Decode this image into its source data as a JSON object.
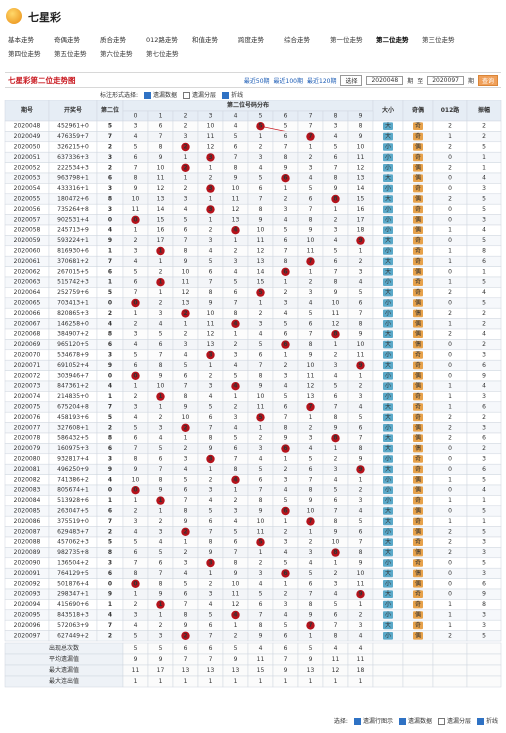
{
  "header": {
    "title": "七星彩"
  },
  "nav": {
    "items": [
      "基本走势",
      "奇偶走势",
      "质合走势",
      "012路走势",
      "和值走势",
      "跨度走势",
      "综合走势",
      "第一位走势",
      "第二位走势",
      "第三位走势",
      "第四位走势",
      "第五位走势",
      "第六位走势",
      "第七位走势"
    ],
    "active": 8
  },
  "bar": {
    "title": "七星彩第二位走势图",
    "periods": [
      "最近50期",
      "最近100期",
      "最近120期"
    ],
    "select": "选择",
    "from": "2020048",
    "to_label": "至",
    "to": "2020097",
    "unit": "期",
    "query": "查询"
  },
  "options": {
    "label": "标注形式选择:",
    "items": [
      {
        "label": "遗漏数据",
        "checked": true
      },
      {
        "label": "遗漏分层",
        "checked": false
      },
      {
        "label": "折线",
        "checked": true
      }
    ]
  },
  "legend": {
    "label": "选择:",
    "items": [
      {
        "label": "遗漏行图示",
        "checked": true
      },
      {
        "label": "遗漏数据",
        "checked": true
      },
      {
        "label": "遗漏分层",
        "checked": false
      },
      {
        "label": "折线",
        "checked": true
      }
    ]
  },
  "table": {
    "headers": [
      "期号",
      "开奖号",
      "第二位",
      "第二位号码分布",
      "大小",
      "奇偶",
      "012路",
      "振幅"
    ],
    "digit_headers": [
      "0",
      "1",
      "2",
      "3",
      "4",
      "5",
      "6",
      "7",
      "8",
      "9"
    ],
    "rows": [
      {
        "issue": "2020048",
        "number": "452961+0",
        "digit": 5,
        "miss": [
          3,
          6,
          2,
          10,
          4,
          5,
          5,
          7,
          3,
          8
        ],
        "size": "大",
        "parity": "奇",
        "route": 2,
        "amp": 2
      },
      {
        "issue": "2020049",
        "number": "476359+7",
        "digit": 7,
        "miss": [
          4,
          7,
          3,
          11,
          5,
          1,
          6,
          7,
          4,
          9
        ],
        "size": "大",
        "parity": "奇",
        "route": 1,
        "amp": 2
      },
      {
        "issue": "2020050",
        "number": "326215+0",
        "digit": 2,
        "miss": [
          5,
          8,
          2,
          12,
          6,
          2,
          7,
          1,
          5,
          10
        ],
        "size": "小",
        "parity": "偶",
        "route": 2,
        "amp": 5
      },
      {
        "issue": "2020051",
        "number": "637336+3",
        "digit": 3,
        "miss": [
          6,
          9,
          1,
          3,
          7,
          3,
          8,
          2,
          6,
          11
        ],
        "size": "小",
        "parity": "奇",
        "route": 0,
        "amp": 1
      },
      {
        "issue": "2020052",
        "number": "222534+3",
        "digit": 2,
        "miss": [
          7,
          10,
          2,
          1,
          8,
          4,
          9,
          3,
          7,
          12
        ],
        "size": "小",
        "parity": "偶",
        "route": 2,
        "amp": 1
      },
      {
        "issue": "2020053",
        "number": "963798+1",
        "digit": 6,
        "miss": [
          8,
          11,
          1,
          2,
          9,
          5,
          6,
          4,
          8,
          13
        ],
        "size": "大",
        "parity": "偶",
        "route": 0,
        "amp": 4
      },
      {
        "issue": "2020054",
        "number": "433316+1",
        "digit": 3,
        "miss": [
          9,
          12,
          2,
          3,
          10,
          6,
          1,
          5,
          9,
          14
        ],
        "size": "小",
        "parity": "奇",
        "route": 0,
        "amp": 3
      },
      {
        "issue": "2020055",
        "number": "180472+6",
        "digit": 8,
        "miss": [
          10,
          13,
          3,
          1,
          11,
          7,
          2,
          6,
          8,
          15
        ],
        "size": "大",
        "parity": "偶",
        "route": 2,
        "amp": 5
      },
      {
        "issue": "2020056",
        "number": "735264+8",
        "digit": 3,
        "miss": [
          11,
          14,
          4,
          3,
          12,
          8,
          3,
          7,
          1,
          16
        ],
        "size": "小",
        "parity": "奇",
        "route": 0,
        "amp": 5
      },
      {
        "issue": "2020057",
        "number": "902531+4",
        "digit": 0,
        "miss": [
          0,
          15,
          5,
          1,
          13,
          9,
          4,
          8,
          2,
          17
        ],
        "size": "小",
        "parity": "偶",
        "route": 0,
        "amp": 3
      },
      {
        "issue": "2020058",
        "number": "245713+9",
        "digit": 4,
        "miss": [
          1,
          16,
          6,
          2,
          4,
          10,
          5,
          9,
          3,
          18
        ],
        "size": "小",
        "parity": "偶",
        "route": 1,
        "amp": 4
      },
      {
        "issue": "2020059",
        "number": "593224+1",
        "digit": 9,
        "miss": [
          2,
          17,
          7,
          3,
          1,
          11,
          6,
          10,
          4,
          9
        ],
        "size": "大",
        "parity": "奇",
        "route": 0,
        "amp": 5
      },
      {
        "issue": "2020060",
        "number": "816930+6",
        "digit": 1,
        "miss": [
          3,
          1,
          8,
          4,
          2,
          12,
          7,
          11,
          5,
          1
        ],
        "size": "小",
        "parity": "奇",
        "route": 1,
        "amp": 8
      },
      {
        "issue": "2020061",
        "number": "370681+2",
        "digit": 7,
        "miss": [
          4,
          1,
          9,
          5,
          3,
          13,
          8,
          7,
          6,
          2
        ],
        "size": "大",
        "parity": "奇",
        "route": 1,
        "amp": 6
      },
      {
        "issue": "2020062",
        "number": "267015+5",
        "digit": 6,
        "miss": [
          5,
          2,
          10,
          6,
          4,
          14,
          6,
          1,
          7,
          3
        ],
        "size": "大",
        "parity": "偶",
        "route": 0,
        "amp": 1
      },
      {
        "issue": "2020063",
        "number": "515742+3",
        "digit": 1,
        "miss": [
          6,
          1,
          11,
          7,
          5,
          15,
          1,
          2,
          8,
          4
        ],
        "size": "小",
        "parity": "奇",
        "route": 1,
        "amp": 5
      },
      {
        "issue": "2020064",
        "number": "252759+6",
        "digit": 5,
        "miss": [
          7,
          1,
          12,
          8,
          6,
          5,
          2,
          3,
          9,
          5
        ],
        "size": "大",
        "parity": "奇",
        "route": 2,
        "amp": 4
      },
      {
        "issue": "2020065",
        "number": "703413+1",
        "digit": 0,
        "miss": [
          0,
          2,
          13,
          9,
          7,
          1,
          3,
          4,
          10,
          6
        ],
        "size": "小",
        "parity": "偶",
        "route": 0,
        "amp": 5
      },
      {
        "issue": "2020066",
        "number": "820865+3",
        "digit": 2,
        "miss": [
          1,
          3,
          2,
          10,
          8,
          2,
          4,
          5,
          11,
          7
        ],
        "size": "小",
        "parity": "偶",
        "route": 2,
        "amp": 2
      },
      {
        "issue": "2020067",
        "number": "146258+0",
        "digit": 4,
        "miss": [
          2,
          4,
          1,
          11,
          4,
          3,
          5,
          6,
          12,
          8
        ],
        "size": "小",
        "parity": "偶",
        "route": 1,
        "amp": 2
      },
      {
        "issue": "2020068",
        "number": "384907+2",
        "digit": 8,
        "miss": [
          3,
          5,
          2,
          12,
          1,
          4,
          6,
          7,
          8,
          9
        ],
        "size": "大",
        "parity": "偶",
        "route": 2,
        "amp": 4
      },
      {
        "issue": "2020069",
        "number": "965120+5",
        "digit": 6,
        "miss": [
          4,
          6,
          3,
          13,
          2,
          5,
          6,
          8,
          1,
          10
        ],
        "size": "大",
        "parity": "偶",
        "route": 0,
        "amp": 2
      },
      {
        "issue": "2020070",
        "number": "534678+9",
        "digit": 3,
        "miss": [
          5,
          7,
          4,
          3,
          3,
          6,
          1,
          9,
          2,
          11
        ],
        "size": "小",
        "parity": "奇",
        "route": 0,
        "amp": 3
      },
      {
        "issue": "2020071",
        "number": "691052+4",
        "digit": 9,
        "miss": [
          6,
          8,
          5,
          1,
          4,
          7,
          2,
          10,
          3,
          9
        ],
        "size": "大",
        "parity": "奇",
        "route": 0,
        "amp": 6
      },
      {
        "issue": "2020072",
        "number": "303946+7",
        "digit": 0,
        "miss": [
          0,
          9,
          6,
          2,
          5,
          8,
          3,
          11,
          4,
          1
        ],
        "size": "小",
        "parity": "偶",
        "route": 0,
        "amp": 9
      },
      {
        "issue": "2020073",
        "number": "847361+2",
        "digit": 4,
        "miss": [
          1,
          10,
          7,
          3,
          4,
          9,
          4,
          12,
          5,
          2
        ],
        "size": "小",
        "parity": "偶",
        "route": 1,
        "amp": 4
      },
      {
        "issue": "2020074",
        "number": "214835+0",
        "digit": 1,
        "miss": [
          2,
          1,
          8,
          4,
          1,
          10,
          5,
          13,
          6,
          3
        ],
        "size": "小",
        "parity": "奇",
        "route": 1,
        "amp": 3
      },
      {
        "issue": "2020075",
        "number": "675204+8",
        "digit": 7,
        "miss": [
          3,
          1,
          9,
          5,
          2,
          11,
          6,
          7,
          7,
          4
        ],
        "size": "大",
        "parity": "奇",
        "route": 1,
        "amp": 6
      },
      {
        "issue": "2020076",
        "number": "458193+6",
        "digit": 5,
        "miss": [
          4,
          2,
          10,
          6,
          3,
          5,
          7,
          1,
          8,
          5
        ],
        "size": "大",
        "parity": "奇",
        "route": 2,
        "amp": 2
      },
      {
        "issue": "2020077",
        "number": "327608+1",
        "digit": 2,
        "miss": [
          5,
          3,
          2,
          7,
          4,
          1,
          8,
          2,
          9,
          6
        ],
        "size": "小",
        "parity": "偶",
        "route": 2,
        "amp": 3
      },
      {
        "issue": "2020078",
        "number": "586432+5",
        "digit": 8,
        "miss": [
          6,
          4,
          1,
          8,
          5,
          2,
          9,
          3,
          8,
          7
        ],
        "size": "大",
        "parity": "偶",
        "route": 2,
        "amp": 6
      },
      {
        "issue": "2020079",
        "number": "160975+3",
        "digit": 6,
        "miss": [
          7,
          5,
          2,
          9,
          6,
          3,
          6,
          4,
          1,
          8
        ],
        "size": "大",
        "parity": "偶",
        "route": 0,
        "amp": 2
      },
      {
        "issue": "2020080",
        "number": "932817+4",
        "digit": 3,
        "miss": [
          8,
          6,
          3,
          3,
          7,
          4,
          1,
          5,
          2,
          9
        ],
        "size": "小",
        "parity": "奇",
        "route": 0,
        "amp": 3
      },
      {
        "issue": "2020081",
        "number": "496250+9",
        "digit": 9,
        "miss": [
          9,
          7,
          4,
          1,
          8,
          5,
          2,
          6,
          3,
          9
        ],
        "size": "大",
        "parity": "奇",
        "route": 0,
        "amp": 6
      },
      {
        "issue": "2020082",
        "number": "741386+2",
        "digit": 4,
        "miss": [
          10,
          8,
          5,
          2,
          4,
          6,
          3,
          7,
          4,
          1
        ],
        "size": "小",
        "parity": "偶",
        "route": 1,
        "amp": 5
      },
      {
        "issue": "2020083",
        "number": "805674+1",
        "digit": 0,
        "miss": [
          0,
          9,
          6,
          3,
          1,
          7,
          4,
          8,
          5,
          2
        ],
        "size": "小",
        "parity": "偶",
        "route": 0,
        "amp": 4
      },
      {
        "issue": "2020084",
        "number": "513928+6",
        "digit": 1,
        "miss": [
          1,
          1,
          7,
          4,
          2,
          8,
          5,
          9,
          6,
          3
        ],
        "size": "小",
        "parity": "奇",
        "route": 1,
        "amp": 1
      },
      {
        "issue": "2020085",
        "number": "263047+5",
        "digit": 6,
        "miss": [
          2,
          1,
          8,
          5,
          3,
          9,
          6,
          10,
          7,
          4
        ],
        "size": "大",
        "parity": "偶",
        "route": 0,
        "amp": 5
      },
      {
        "issue": "2020086",
        "number": "375519+0",
        "digit": 7,
        "miss": [
          3,
          2,
          9,
          6,
          4,
          10,
          1,
          7,
          8,
          5
        ],
        "size": "大",
        "parity": "奇",
        "route": 1,
        "amp": 1
      },
      {
        "issue": "2020087",
        "number": "629483+7",
        "digit": 2,
        "miss": [
          4,
          3,
          2,
          7,
          5,
          11,
          2,
          1,
          9,
          6
        ],
        "size": "小",
        "parity": "偶",
        "route": 2,
        "amp": 5
      },
      {
        "issue": "2020088",
        "number": "457062+3",
        "digit": 5,
        "miss": [
          5,
          4,
          1,
          8,
          6,
          5,
          3,
          2,
          10,
          7
        ],
        "size": "大",
        "parity": "奇",
        "route": 2,
        "amp": 3
      },
      {
        "issue": "2020089",
        "number": "982735+8",
        "digit": 8,
        "miss": [
          6,
          5,
          2,
          9,
          7,
          1,
          4,
          3,
          8,
          8
        ],
        "size": "大",
        "parity": "偶",
        "route": 2,
        "amp": 3
      },
      {
        "issue": "2020090",
        "number": "136504+2",
        "digit": 3,
        "miss": [
          7,
          6,
          3,
          3,
          8,
          2,
          5,
          4,
          1,
          9
        ],
        "size": "小",
        "parity": "奇",
        "route": 0,
        "amp": 5
      },
      {
        "issue": "2020091",
        "number": "764129+5",
        "digit": 6,
        "miss": [
          8,
          7,
          4,
          1,
          9,
          3,
          6,
          5,
          2,
          10
        ],
        "size": "大",
        "parity": "偶",
        "route": 0,
        "amp": 3
      },
      {
        "issue": "2020092",
        "number": "501876+4",
        "digit": 0,
        "miss": [
          0,
          8,
          5,
          2,
          10,
          4,
          1,
          6,
          3,
          11
        ],
        "size": "小",
        "parity": "偶",
        "route": 0,
        "amp": 6
      },
      {
        "issue": "2020093",
        "number": "298347+1",
        "digit": 9,
        "miss": [
          1,
          9,
          6,
          3,
          11,
          5,
          2,
          7,
          4,
          9
        ],
        "size": "大",
        "parity": "奇",
        "route": 0,
        "amp": 9
      },
      {
        "issue": "2020094",
        "number": "415690+6",
        "digit": 1,
        "miss": [
          2,
          1,
          7,
          4,
          12,
          6,
          3,
          8,
          5,
          1
        ],
        "size": "小",
        "parity": "奇",
        "route": 1,
        "amp": 8
      },
      {
        "issue": "2020095",
        "number": "843518+3",
        "digit": 4,
        "miss": [
          3,
          1,
          8,
          5,
          4,
          7,
          4,
          9,
          6,
          2
        ],
        "size": "小",
        "parity": "偶",
        "route": 1,
        "amp": 3
      },
      {
        "issue": "2020096",
        "number": "572063+9",
        "digit": 7,
        "miss": [
          4,
          2,
          9,
          6,
          1,
          8,
          5,
          7,
          7,
          3
        ],
        "size": "大",
        "parity": "奇",
        "route": 1,
        "amp": 3
      },
      {
        "issue": "2020097",
        "number": "627449+2",
        "digit": 2,
        "miss": [
          5,
          3,
          2,
          7,
          2,
          9,
          6,
          1,
          8,
          4
        ],
        "size": "小",
        "parity": "偶",
        "route": 2,
        "amp": 5
      }
    ],
    "stats": [
      {
        "label": "出现总次数",
        "values": [
          5,
          5,
          6,
          6,
          5,
          4,
          6,
          5,
          4,
          4
        ]
      },
      {
        "label": "平均遗漏值",
        "values": [
          9,
          9,
          7,
          7,
          9,
          11,
          7,
          9,
          11,
          11
        ]
      },
      {
        "label": "最大遗漏值",
        "values": [
          11,
          17,
          13,
          13,
          13,
          15,
          9,
          13,
          12,
          18
        ]
      },
      {
        "label": "最大连出值",
        "values": [
          1,
          1,
          1,
          1,
          1,
          1,
          1,
          1,
          1,
          1
        ]
      }
    ]
  }
}
